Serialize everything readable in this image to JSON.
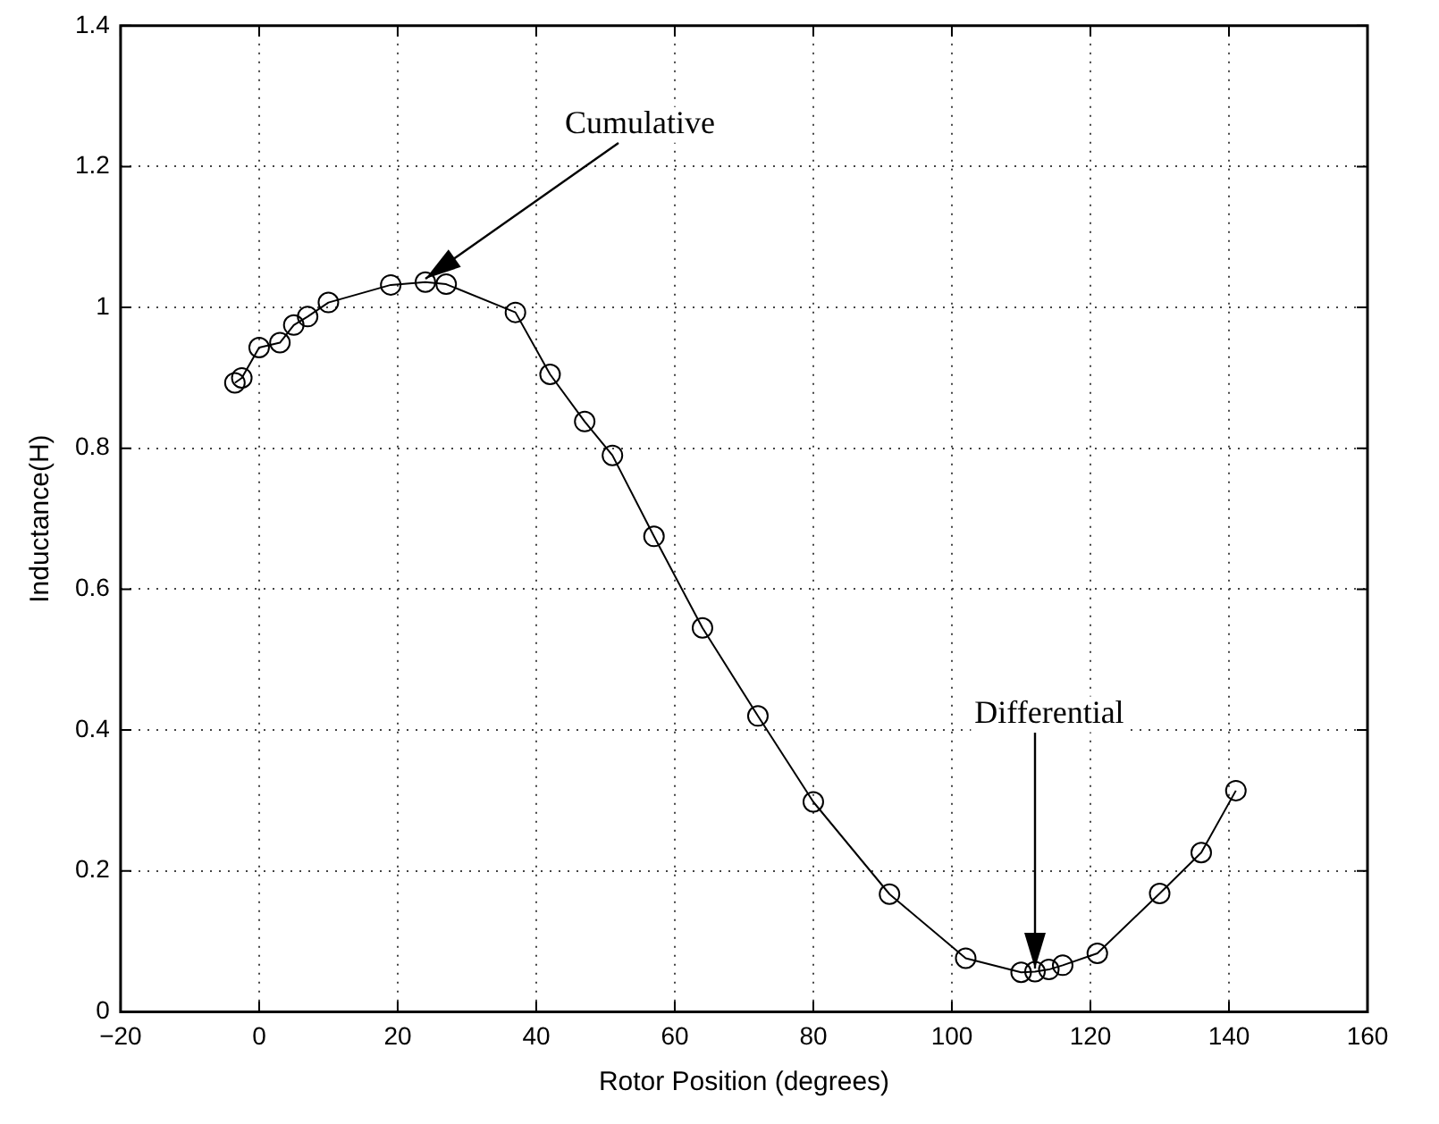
{
  "chart_data": {
    "type": "line",
    "xlabel": "Rotor Position (degrees)",
    "ylabel": "Inductance(H)",
    "x": [
      -3.5,
      -2.5,
      0,
      3,
      5,
      7,
      10,
      19,
      24,
      27,
      37,
      42,
      47,
      51,
      57,
      64,
      72,
      80,
      91,
      102,
      110,
      112,
      114,
      116,
      121,
      130,
      136,
      141
    ],
    "values": [
      0.893,
      0.9,
      0.943,
      0.95,
      0.975,
      0.987,
      1.007,
      1.032,
      1.036,
      1.033,
      0.993,
      0.905,
      0.838,
      0.79,
      0.675,
      0.545,
      0.42,
      0.298,
      0.167,
      0.076,
      0.056,
      0.057,
      0.06,
      0.066,
      0.083,
      0.168,
      0.226,
      0.314
    ],
    "color": "#000000",
    "marker": "circle",
    "line_style": "solid",
    "xlim": [
      -20,
      160
    ],
    "xticks": [
      -20,
      0,
      20,
      40,
      60,
      80,
      100,
      120,
      140,
      160
    ],
    "ylim": [
      0,
      1.4
    ],
    "yticks": [
      0,
      0.2,
      0.4,
      0.6,
      0.8,
      1,
      1.2,
      1.4
    ],
    "grid": true,
    "legend": false,
    "annotations": [
      {
        "text": "Cumulative",
        "x": 24,
        "y": 1.036
      },
      {
        "text": "Differential",
        "x": 112,
        "y": 0.057
      }
    ]
  }
}
